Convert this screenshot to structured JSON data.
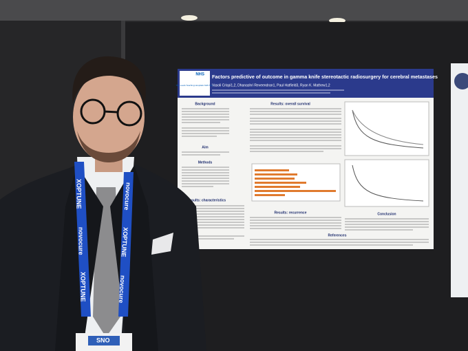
{
  "poster": {
    "logo": {
      "mark": "NHS",
      "org": "The Leeds Teaching Hospitals NHS Trust"
    },
    "title": "Factors predictive of outcome in gamma knife stereotactic radiosurgery for cerebral metastases",
    "authors": "Vasoli Crispi1,2, Dhanashri Reveendran1, Paul Hatfield3, Ryan K. Mathew1,2",
    "sections": [
      "Background",
      "Aim",
      "Methods",
      "Results: characteristics",
      "Results: overall survival",
      "Results: recurrence",
      "Conclusion",
      "References"
    ]
  },
  "lanyard": {
    "brand": "XOPTUNE",
    "sponsor": "novocure"
  },
  "badge": "SNO"
}
